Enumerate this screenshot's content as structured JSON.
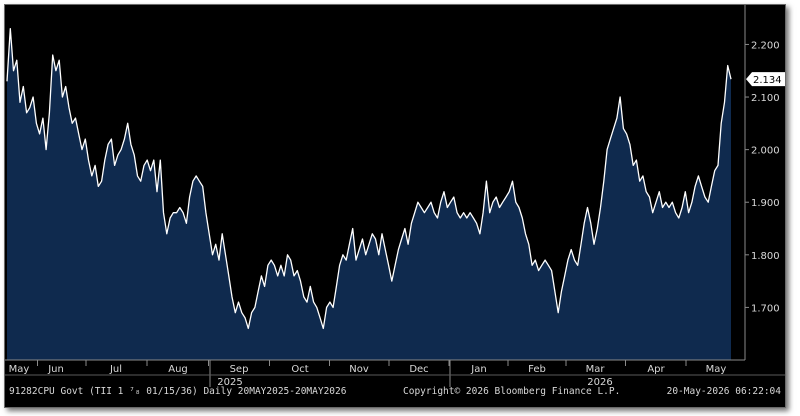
{
  "chart_data": {
    "type": "area",
    "title": "",
    "xlabel": "",
    "ylabel": "",
    "ylim": [
      1.6,
      2.275
    ],
    "y_ticks": [
      "1.700",
      "1.800",
      "1.900",
      "2.000",
      "2.100",
      "2.200"
    ],
    "x_ticks": [
      "May",
      "Jun",
      "Jul",
      "Aug",
      "Sep",
      "Oct",
      "Nov",
      "Dec",
      "Jan",
      "Feb",
      "Mar",
      "Apr",
      "May"
    ],
    "year_labels": [
      "2025",
      "2026"
    ],
    "last_value_label": "2.134",
    "colors": {
      "background": "#000000",
      "line": "#ffffff",
      "fill": "#0f2a4e",
      "axis": "#8a8a8a",
      "text": "#d8d8d8",
      "last_value_tag": "#ffffff"
    },
    "series": [
      {
        "values": [
          2.13,
          2.23,
          2.15,
          2.17,
          2.09,
          2.12,
          2.07,
          2.08,
          2.1,
          2.05,
          2.03,
          2.06,
          2.0,
          2.07,
          2.18,
          2.15,
          2.17,
          2.1,
          2.12,
          2.08,
          2.05,
          2.06,
          2.03,
          2.0,
          2.02,
          1.98,
          1.95,
          1.97,
          1.93,
          1.94,
          1.98,
          2.01,
          2.02,
          1.97,
          1.99,
          2.0,
          2.02,
          2.05,
          2.01,
          1.99,
          1.95,
          1.94,
          1.97,
          1.98,
          1.96,
          1.98,
          1.92,
          1.98,
          1.88,
          1.84,
          1.87,
          1.88,
          1.88,
          1.89,
          1.88,
          1.86,
          1.91,
          1.94,
          1.95,
          1.94,
          1.93,
          1.88,
          1.84,
          1.8,
          1.82,
          1.79,
          1.84,
          1.8,
          1.76,
          1.72,
          1.69,
          1.71,
          1.69,
          1.68,
          1.66,
          1.69,
          1.7,
          1.73,
          1.76,
          1.74,
          1.78,
          1.79,
          1.78,
          1.76,
          1.78,
          1.76,
          1.8,
          1.79,
          1.76,
          1.77,
          1.75,
          1.72,
          1.71,
          1.74,
          1.71,
          1.7,
          1.68,
          1.66,
          1.7,
          1.71,
          1.7,
          1.74,
          1.78,
          1.8,
          1.79,
          1.82,
          1.85,
          1.79,
          1.81,
          1.83,
          1.8,
          1.82,
          1.84,
          1.83,
          1.8,
          1.84,
          1.81,
          1.78,
          1.75,
          1.78,
          1.81,
          1.83,
          1.85,
          1.82,
          1.86,
          1.88,
          1.9,
          1.89,
          1.88,
          1.89,
          1.9,
          1.88,
          1.87,
          1.9,
          1.92,
          1.89,
          1.9,
          1.91,
          1.88,
          1.87,
          1.88,
          1.87,
          1.88,
          1.87,
          1.86,
          1.84,
          1.88,
          1.94,
          1.88,
          1.9,
          1.91,
          1.89,
          1.9,
          1.91,
          1.92,
          1.94,
          1.9,
          1.89,
          1.87,
          1.84,
          1.82,
          1.78,
          1.79,
          1.77,
          1.78,
          1.79,
          1.78,
          1.77,
          1.73,
          1.69,
          1.73,
          1.76,
          1.79,
          1.81,
          1.79,
          1.78,
          1.82,
          1.86,
          1.89,
          1.86,
          1.82,
          1.85,
          1.89,
          1.94,
          2.0,
          2.02,
          2.04,
          2.06,
          2.1,
          2.04,
          2.03,
          2.01,
          1.97,
          1.98,
          1.94,
          1.95,
          1.92,
          1.91,
          1.88,
          1.9,
          1.92,
          1.89,
          1.9,
          1.89,
          1.9,
          1.88,
          1.87,
          1.89,
          1.92,
          1.88,
          1.9,
          1.93,
          1.95,
          1.93,
          1.91,
          1.9,
          1.93,
          1.96,
          1.97,
          2.05,
          2.09,
          2.16,
          2.134
        ]
      }
    ]
  },
  "footer": {
    "ticker": "91282CPU Govt (TII 1 ⁷₈ 01/15/36) Daily 20MAY2025-20MAY2026",
    "copyright": "Copyright© 2026 Bloomberg Finance L.P.",
    "timestamp": "20-May-2026 06:22:04"
  }
}
